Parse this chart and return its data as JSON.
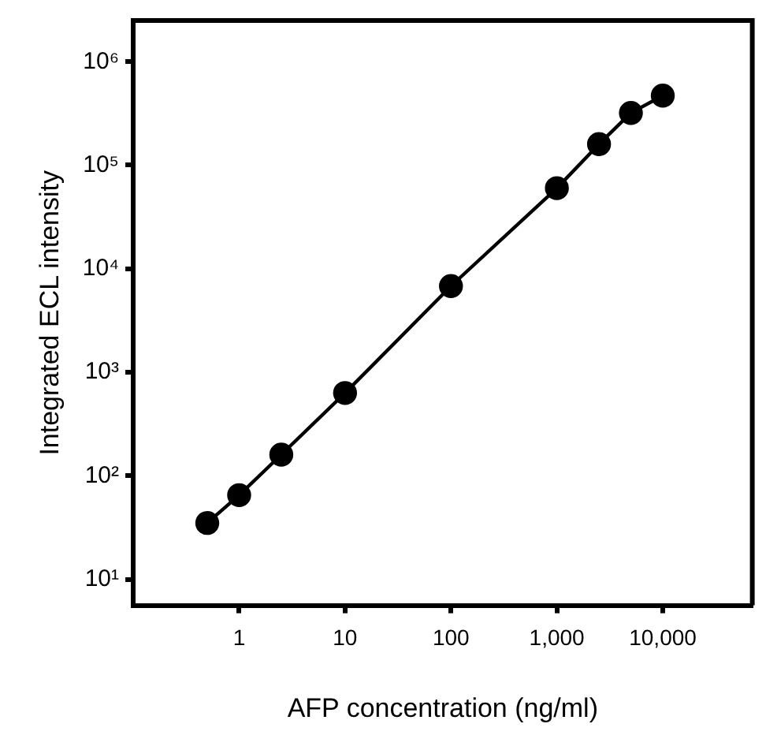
{
  "chart_data": {
    "type": "line",
    "xlabel": "AFP concentration (ng/ml)",
    "ylabel": "Integrated ECL intensity",
    "x": [
      0.5,
      1,
      2.5,
      10,
      100,
      1000,
      2500,
      5000,
      10000
    ],
    "series": [
      {
        "color": "#000000",
        "values": [
          35,
          65,
          160,
          630,
          6800,
          60000,
          160000,
          320000,
          470000
        ]
      }
    ],
    "log": "xy",
    "marker": "circle",
    "line_style": "solid",
    "grid": false,
    "legend": false,
    "xlim": [
      0.1,
      70000
    ],
    "xticks": [
      1,
      10,
      100,
      {
        "value": 1000,
        "label": "1,000"
      },
      {
        "value": 10000,
        "label": "10,000"
      }
    ],
    "ylim": [
      5.6,
      2500000
    ],
    "yticks": [
      {
        "value": 10,
        "label": "10¹"
      },
      {
        "value": 100,
        "label": "10²"
      },
      {
        "value": 1000,
        "label": "10³"
      },
      {
        "value": 10000,
        "label": "10⁴"
      },
      {
        "value": 100000,
        "label": "10⁵"
      },
      {
        "value": 1000000,
        "label": "10⁶"
      }
    ]
  }
}
